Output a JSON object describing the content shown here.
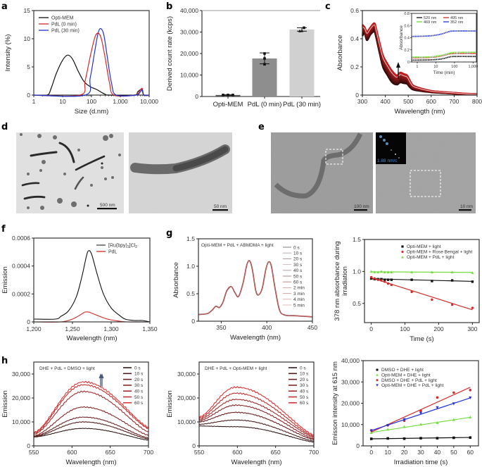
{
  "panel_labels": [
    "a",
    "b",
    "c",
    "d",
    "e",
    "f",
    "g",
    "h"
  ],
  "chart_data": [
    {
      "id": "a",
      "type": "line",
      "xscale": "log",
      "xlabel": "Size (d.nm)",
      "ylabel": "Intensity (%)",
      "xlim": [
        1,
        10000
      ],
      "ylim": [
        0,
        15
      ],
      "xticks": [
        1,
        10,
        100,
        1000,
        10000
      ],
      "xtick_labels": [
        "1",
        "10",
        "100",
        "1,000",
        "10,000"
      ],
      "yticks": [
        0,
        5,
        10,
        15
      ],
      "ytick_labels": [
        "0",
        "5",
        "10",
        "15"
      ],
      "legend_position": "top-left",
      "series": [
        {
          "name": "Opti-MEM",
          "color": "#111111",
          "x": [
            1,
            2.9,
            4,
            6,
            10,
            15,
            22,
            35,
            55,
            90,
            150,
            220,
            300,
            400,
            3000,
            4000,
            5500,
            6500,
            10000
          ],
          "y": [
            0,
            0,
            1.2,
            3.8,
            6.2,
            7.1,
            6.4,
            4.2,
            2.4,
            1.5,
            1.0,
            0.5,
            0.15,
            0,
            0,
            0.6,
            1.0,
            0,
            0
          ]
        },
        {
          "name": "PdL (0 min)",
          "color": "#d42a2a",
          "x": [
            1,
            40,
            60,
            90,
            130,
            170,
            220,
            300,
            420,
            600,
            3200,
            4500,
            5700,
            6500,
            10000
          ],
          "y": [
            0,
            0,
            2.5,
            6.8,
            10.2,
            11.0,
            10.0,
            6.5,
            2.2,
            0,
            0,
            0.6,
            1.2,
            0,
            0
          ]
        },
        {
          "name": "PdL (30 min)",
          "color": "#2233cc",
          "x": [
            1,
            60,
            90,
            130,
            170,
            210,
            270,
            360,
            500,
            720,
            3500,
            4800,
            5800,
            6600,
            10000
          ],
          "y": [
            0,
            0,
            3.0,
            7.8,
            11.0,
            11.8,
            10.6,
            6.5,
            2.0,
            0,
            0,
            0.5,
            0.9,
            0,
            0
          ]
        }
      ]
    },
    {
      "id": "b",
      "type": "bar",
      "ylabel": "Derived count rate (kcps)",
      "categories": [
        "Opti-MEM",
        "PdL (0 min)",
        "PdL (30 min)"
      ],
      "values": [
        700,
        17700,
        31200
      ],
      "points": [
        [
          700,
          700,
          700
        ],
        [
          15000,
          17700,
          20000
        ],
        [
          30500,
          30600,
          32000
        ]
      ],
      "errors": [
        [
          600,
          800
        ],
        [
          15200,
          20300
        ],
        [
          30400,
          32000
        ]
      ],
      "bar_colors": [
        "#555555",
        "#8e8e8e",
        "#d0d0d0"
      ],
      "ylim": [
        0,
        40000
      ],
      "yticks": [
        0,
        10000,
        20000,
        30000,
        40000
      ],
      "ytick_labels": [
        "0",
        "10,000",
        "20,000",
        "30,000",
        "40,000"
      ]
    },
    {
      "id": "c",
      "type": "line",
      "xlabel": "Wavelength (nm)",
      "ylabel": "Absorbance",
      "xlim": [
        300,
        800
      ],
      "ylim": [
        0,
        0.6
      ],
      "xticks": [
        300,
        400,
        500,
        600,
        700,
        800
      ],
      "yticks": [
        0,
        0.2,
        0.4,
        0.6
      ],
      "ytick_labels": [
        "0",
        "0.2",
        "0.4",
        "0.6"
      ],
      "spectrum_x": [
        300,
        310,
        320,
        335,
        352,
        360,
        375,
        390,
        410,
        430,
        450,
        465,
        480,
        495,
        505,
        520,
        550,
        600,
        650,
        700,
        750,
        800
      ],
      "spectrum_low": [
        0.42,
        0.44,
        0.39,
        0.43,
        0.45,
        0.41,
        0.3,
        0.2,
        0.14,
        0.09,
        0.075,
        0.09,
        0.085,
        0.08,
        0.06,
        0.04,
        0.03,
        0.02,
        0.015,
        0.01,
        0.005,
        0.004
      ],
      "spectrum_high": [
        0.5,
        0.48,
        0.45,
        0.48,
        0.51,
        0.47,
        0.37,
        0.28,
        0.22,
        0.17,
        0.14,
        0.16,
        0.15,
        0.14,
        0.11,
        0.07,
        0.05,
        0.03,
        0.022,
        0.016,
        0.01,
        0.008
      ],
      "arrow": "up",
      "inset": {
        "xlabel": "Time (min)",
        "ylabel": "Absorbance",
        "xscale": "log",
        "xlim": [
          0.5,
          1500
        ],
        "ylim": [
          0,
          0.8
        ],
        "xticks": [
          1,
          10,
          100,
          1000
        ],
        "xtick_labels": [
          "1",
          "10",
          "100",
          "1,000"
        ],
        "yticks": [
          0,
          0.2,
          0.4,
          0.6,
          0.8
        ],
        "ytick_labels": [
          "0",
          "0.2",
          "0.4",
          "0.6",
          "0.8"
        ],
        "series": [
          {
            "name": "520 nm",
            "color": "#111111",
            "x": [
              0.5,
              5,
              20,
              50,
              100,
              1500
            ],
            "y": [
              0.03,
              0.035,
              0.05,
              0.08,
              0.09,
              0.09
            ]
          },
          {
            "name": "495 nm",
            "color": "#d42a2a",
            "x": [
              0.5,
              5,
              20,
              50,
              100,
              1500
            ],
            "y": [
              0.07,
              0.075,
              0.1,
              0.13,
              0.14,
              0.14
            ]
          },
          {
            "name": "469 nm",
            "color": "#66dd33",
            "x": [
              0.5,
              5,
              20,
              50,
              100,
              1500
            ],
            "y": [
              0.08,
              0.085,
              0.11,
              0.14,
              0.155,
              0.16
            ]
          },
          {
            "name": "352 nm",
            "color": "#2233dd",
            "x": [
              0.5,
              5,
              20,
              50,
              100,
              1500
            ],
            "y": [
              0.42,
              0.43,
              0.46,
              0.5,
              0.51,
              0.51
            ]
          }
        ]
      }
    },
    {
      "id": "f",
      "type": "line",
      "xlabel": "Wavelength (nm)",
      "ylabel": "Emission",
      "xlim": [
        1200,
        1350
      ],
      "ylim": [
        0,
        0.0006
      ],
      "xticks": [
        1200,
        1250,
        1300,
        1350
      ],
      "xtick_labels": [
        "1,200",
        "1,250",
        "1,300",
        "1,350"
      ],
      "yticks": [
        0,
        0.0002,
        0.0004,
        0.0006
      ],
      "ytick_labels": [
        "0",
        "0.0002",
        "0.0004",
        "0.0006"
      ],
      "legend_position": "top-right",
      "series": [
        {
          "name": "[Ru(bpy)3]Cl2",
          "color": "#111111",
          "x": [
            1200,
            1228,
            1235,
            1245,
            1255,
            1262,
            1268,
            1271,
            1275,
            1282,
            1290,
            1300,
            1310,
            1318,
            1330,
            1340,
            1350
          ],
          "y": [
            2e-05,
            2e-05,
            4e-05,
            8e-05,
            0.00018,
            0.00032,
            0.00047,
            0.00051,
            0.00048,
            0.00034,
            0.0002,
            0.0001,
            5e-05,
            2e-05,
            1e-05,
            1e-05,
            0
          ],
          "label_parts": {
            "base": "[Ru(bpy)",
            "sub1": "3",
            "mid": "]Cl",
            "sub2": "2"
          }
        },
        {
          "name": "PdL",
          "color": "#d42a2a",
          "x": [
            1200,
            1235,
            1250,
            1260,
            1266,
            1271,
            1276,
            1285,
            1295,
            1305,
            1320,
            1350
          ],
          "y": [
            0,
            0,
            2e-05,
            5e-05,
            7e-05,
            7e-05,
            6e-05,
            4e-05,
            2e-05,
            1e-05,
            0,
            0
          ]
        }
      ]
    },
    {
      "id": "g",
      "type": "line",
      "xlabel": "Wavelength (nm)",
      "ylabel": "Absorbance",
      "annotation": "Opti-MEM + PdL + ABMDMA + light",
      "xlim": [
        325,
        450
      ],
      "ylim": [
        0,
        1.5
      ],
      "xticks": [
        350,
        400,
        450
      ],
      "yticks": [
        0,
        0.5,
        1.0,
        1.5
      ],
      "ytick_labels": [
        "0",
        "0.5",
        "1.0",
        "1.5"
      ],
      "legend": [
        "0 s",
        "10 s",
        "20 s",
        "30 s",
        "40 s",
        "50 s",
        "60 s",
        "2 min",
        "3 min",
        "4 min",
        "5 min"
      ],
      "legend_colors": [
        "#8a7f7f",
        "#bfb4b4",
        "#a99",
        "#c9bcbc",
        "#b89c9c",
        "#a88888",
        "#b89292",
        "#c8a8a8",
        "#d0a8a8",
        "#d8b4b4",
        "#e2b8b8"
      ],
      "spectrum_x": [
        325,
        335,
        340,
        344,
        348,
        352,
        356,
        361,
        365,
        369,
        374,
        378,
        381,
        384,
        388,
        391,
        395,
        399,
        402,
        405,
        409,
        414,
        420,
        430,
        450
      ],
      "spectrum_y": [
        0.12,
        0.14,
        0.2,
        0.27,
        0.25,
        0.35,
        0.55,
        0.63,
        0.52,
        0.45,
        0.7,
        1.02,
        1.1,
        0.95,
        0.55,
        0.48,
        0.6,
        0.95,
        1.08,
        1.0,
        0.6,
        0.2,
        0.11,
        0.1,
        0.08
      ]
    },
    {
      "id": "g-right",
      "type": "scatter",
      "xlabel": "Time (s)",
      "ylabel": "378 nm absorbance during irradiation",
      "ylabel_lines": [
        "378 nm absorbance during",
        "irradiation"
      ],
      "xlim": [
        -20,
        320
      ],
      "ylim": [
        0.2,
        1.5
      ],
      "xticks": [
        0,
        100,
        200,
        300
      ],
      "yticks": [
        0.5,
        1.0,
        1.5
      ],
      "ytick_labels": [
        "0.5",
        "1.0",
        "1.5"
      ],
      "legend_position": "top",
      "series": [
        {
          "name": "Opti-MEM + light",
          "color": "#111111",
          "marker": "square",
          "x": [
            0,
            10,
            20,
            30,
            40,
            50,
            60,
            120,
            180,
            240,
            300
          ],
          "y": [
            0.89,
            0.88,
            0.88,
            0.88,
            0.87,
            0.87,
            0.87,
            0.87,
            0.85,
            0.86,
            0.84
          ],
          "fit": [
            0.885,
            0.845
          ]
        },
        {
          "name": "Opti-MEM + Rose Bengal + light",
          "color": "#d42a2a",
          "marker": "circle",
          "x": [
            0,
            10,
            20,
            30,
            40,
            50,
            60,
            120,
            180,
            240,
            300
          ],
          "y": [
            0.91,
            0.89,
            0.87,
            0.86,
            0.84,
            0.81,
            0.79,
            0.68,
            0.56,
            0.48,
            0.43
          ],
          "fit": [
            0.9,
            0.4
          ]
        },
        {
          "name": "Opti-MEM + PdL + light",
          "color": "#77dd44",
          "marker": "triangle",
          "x": [
            0,
            10,
            20,
            30,
            40,
            50,
            60,
            120,
            180,
            240,
            300
          ],
          "y": [
            1.0,
            0.99,
            0.99,
            1.0,
            0.99,
            0.99,
            0.99,
            0.99,
            0.99,
            0.99,
            0.98
          ],
          "fit": [
            0.995,
            0.985
          ]
        }
      ]
    },
    {
      "id": "h-left",
      "type": "line",
      "xlabel": "Wavelength (nm)",
      "ylabel": "Emission",
      "annotation": "DHE + PdL + DMSO + light",
      "xlim": [
        550,
        700
      ],
      "ylim": [
        0,
        35000
      ],
      "xticks": [
        550,
        600,
        650,
        700
      ],
      "yticks": [
        0,
        10000,
        20000,
        30000
      ],
      "ytick_labels": [
        "0",
        "10,000",
        "20,000",
        "30,000"
      ],
      "arrow": "up",
      "legend": [
        "0 s",
        "10 s",
        "20 s",
        "30 s",
        "40 s",
        "50 s",
        "60 s"
      ],
      "peak_x": 615,
      "peaks": [
        7300,
        10000,
        12000,
        16200,
        22700,
        25500,
        26700
      ],
      "start": [
        3700,
        3800,
        4000,
        4200,
        4800,
        5200,
        5600
      ],
      "end": [
        2400,
        2900,
        3300,
        4400,
        5800,
        7200,
        7700
      ]
    },
    {
      "id": "h-mid",
      "type": "line",
      "xlabel": "Wavelength (nm)",
      "ylabel": "Emission",
      "annotation": "DHE + PdL + Opti-MEM + light",
      "xlim": [
        550,
        700
      ],
      "ylim": [
        0,
        35000
      ],
      "xticks": [
        550,
        600,
        650,
        700
      ],
      "yticks": [
        0,
        10000,
        20000,
        30000
      ],
      "ytick_labels": [
        "0",
        "10,000",
        "20,000",
        "30,000"
      ],
      "arrow": "up",
      "legend": [
        "0 s",
        "10 s",
        "20 s",
        "30 s",
        "40 s",
        "50 s",
        "60 s"
      ],
      "peak_x": 598,
      "peaks": [
        8000,
        10800,
        14000,
        17000,
        19400,
        22000,
        24500
      ],
      "start": [
        8300,
        9000,
        10000,
        10500,
        11000,
        11500,
        12000
      ],
      "end": [
        1600,
        2000,
        2600,
        3000,
        3600,
        4000,
        4500
      ]
    },
    {
      "id": "h-right",
      "type": "scatter",
      "xlabel": "Irradiation time (s)",
      "ylabel": "Emisson intensity at 615 nm",
      "xlim": [
        -5,
        65
      ],
      "ylim": [
        0,
        40000
      ],
      "xticks": [
        0,
        10,
        20,
        30,
        40,
        50,
        60
      ],
      "yticks": [
        0,
        10000,
        20000,
        30000,
        40000
      ],
      "ytick_labels": [
        "0",
        "10,000",
        "20,000",
        "30,000",
        "40,000"
      ],
      "series": [
        {
          "name": "DMSO + DHE + light",
          "color": "#111111",
          "marker": "square",
          "x": [
            0,
            10,
            20,
            30,
            40,
            50,
            60
          ],
          "y": [
            3300,
            3500,
            3400,
            3600,
            3600,
            3800,
            3900
          ],
          "fit": [
            3300,
            3950
          ]
        },
        {
          "name": "Opti-MEM + DHE + light",
          "color": "#77dd44",
          "marker": "triangle",
          "x": [
            0,
            10,
            20,
            30,
            40,
            50,
            60
          ],
          "y": [
            6200,
            7800,
            9000,
            10100,
            10900,
            12300,
            13500
          ],
          "fit": [
            6300,
            13400
          ]
        },
        {
          "name": "DMSO + DHE + PdL + light",
          "color": "#d42a2a",
          "marker": "circle",
          "x": [
            0,
            10,
            20,
            30,
            40,
            50,
            60
          ],
          "y": [
            7300,
            9700,
            11800,
            16500,
            22700,
            25000,
            26200
          ],
          "fit": [
            6500,
            27500
          ]
        },
        {
          "name": "Opti-MEM + DHE + PdL + light",
          "color": "#2233dd",
          "marker": "triangle-down",
          "x": [
            0,
            10,
            20,
            30,
            40,
            50,
            60
          ],
          "y": [
            7100,
            9600,
            12400,
            15400,
            18000,
            19800,
            22600
          ],
          "fit": [
            7200,
            22500
          ]
        }
      ]
    }
  ],
  "images": {
    "d_left_scale": "500 nm",
    "d_right_scale": "50 nm",
    "e_left_scale": "100 nm",
    "e_right_scale": "10 nm",
    "e_inset_text": "1.88 nm/c"
  }
}
